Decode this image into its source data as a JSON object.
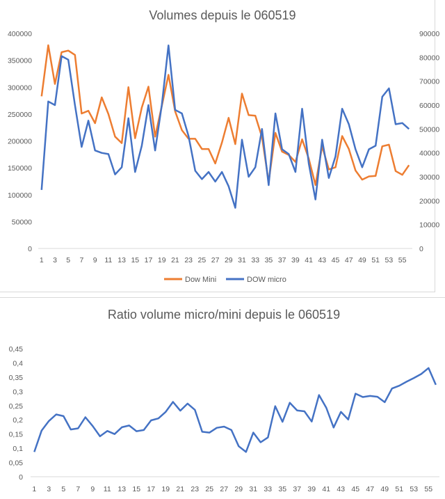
{
  "colors": {
    "dow_mini": "#ED7D31",
    "dow_micro": "#4472C4",
    "axis": "#D9D9D9",
    "text": "#595959"
  },
  "chart_data": [
    {
      "type": "line",
      "title": "Volumes depuis le 060519",
      "categories": [
        1,
        2,
        3,
        4,
        5,
        6,
        7,
        8,
        9,
        10,
        11,
        12,
        13,
        14,
        15,
        16,
        17,
        18,
        19,
        20,
        21,
        22,
        23,
        24,
        25,
        26,
        27,
        28,
        29,
        30,
        31,
        32,
        33,
        34,
        35,
        36,
        37,
        38,
        39,
        40,
        41,
        42,
        43,
        44,
        45,
        46,
        47,
        48,
        49,
        50,
        51,
        52,
        53,
        54,
        55,
        56
      ],
      "x_tick_labels": [
        "1",
        "3",
        "5",
        "7",
        "9",
        "11",
        "13",
        "15",
        "17",
        "19",
        "21",
        "23",
        "25",
        "27",
        "29",
        "31",
        "33",
        "35",
        "37",
        "39",
        "41",
        "43",
        "45",
        "47",
        "49",
        "51",
        "53",
        "55"
      ],
      "y_left": {
        "min": 0,
        "max": 400000,
        "tick_labels": [
          "0",
          "50000",
          "100000",
          "150000",
          "200000",
          "250000",
          "300000",
          "350000",
          "400000"
        ]
      },
      "y_right": {
        "min": 0,
        "max": 90000,
        "tick_labels": [
          "0",
          "10000",
          "20000",
          "30000",
          "40000",
          "50000",
          "60000",
          "70000",
          "80000",
          "90000"
        ]
      },
      "series": [
        {
          "name": "Dow Mini",
          "axis": "left",
          "values": [
            283000,
            378000,
            306000,
            365000,
            368000,
            360000,
            251000,
            256000,
            233000,
            281000,
            250000,
            208000,
            196000,
            300000,
            205000,
            262000,
            301000,
            208000,
            265000,
            323000,
            255000,
            220000,
            204000,
            204000,
            185000,
            185000,
            158000,
            197000,
            243000,
            194000,
            288000,
            248000,
            247000,
            207000,
            124000,
            215000,
            180000,
            174000,
            161000,
            203000,
            167000,
            118000,
            190000,
            147000,
            151000,
            209000,
            185000,
            145000,
            128000,
            134000,
            135000,
            190000,
            193000,
            144000,
            137000,
            155000
          ]
        },
        {
          "name": "DOW micro",
          "axis": "right",
          "values": [
            24500,
            61500,
            60000,
            80500,
            79000,
            60000,
            42500,
            53500,
            41000,
            40000,
            39500,
            31000,
            34000,
            54500,
            32000,
            43000,
            60000,
            41000,
            60000,
            85000,
            58000,
            56500,
            47000,
            32500,
            29000,
            32000,
            28000,
            32000,
            26000,
            17000,
            45500,
            30000,
            34000,
            50000,
            26500,
            56500,
            41500,
            39500,
            32000,
            58500,
            35500,
            20500,
            45500,
            29500,
            38500,
            58500,
            52000,
            41500,
            34000,
            41500,
            43000,
            63500,
            67000,
            52000,
            52500,
            50000
          ]
        }
      ],
      "legend": [
        "Dow Mini",
        "DOW micro"
      ],
      "legend_position": "bottom"
    },
    {
      "type": "line",
      "title": "Ratio volume micro/mini depuis le 060519",
      "categories": [
        1,
        2,
        3,
        4,
        5,
        6,
        7,
        8,
        9,
        10,
        11,
        12,
        13,
        14,
        15,
        16,
        17,
        18,
        19,
        20,
        21,
        22,
        23,
        24,
        25,
        26,
        27,
        28,
        29,
        30,
        31,
        32,
        33,
        34,
        35,
        36,
        37,
        38,
        39,
        40,
        41,
        42,
        43,
        44,
        45,
        46,
        47,
        48,
        49,
        50,
        51,
        52,
        53,
        54,
        55,
        56
      ],
      "x_tick_labels": [
        "1",
        "3",
        "5",
        "7",
        "9",
        "11",
        "13",
        "15",
        "17",
        "19",
        "21",
        "23",
        "25",
        "27",
        "29",
        "31",
        "33",
        "35",
        "37",
        "39",
        "41",
        "43",
        "45",
        "47",
        "49",
        "51",
        "53",
        "55"
      ],
      "y": {
        "min": 0,
        "max": 0.45,
        "tick_labels": [
          "0",
          "0,05",
          "0,1",
          "0,15",
          "0,2",
          "0,25",
          "0,3",
          "0,35",
          "0,4",
          "0,45"
        ]
      },
      "series": [
        {
          "name": "Ratio",
          "values": [
            0.087,
            0.162,
            0.196,
            0.219,
            0.213,
            0.166,
            0.17,
            0.209,
            0.178,
            0.142,
            0.161,
            0.15,
            0.174,
            0.18,
            0.16,
            0.164,
            0.198,
            0.205,
            0.228,
            0.263,
            0.232,
            0.257,
            0.235,
            0.158,
            0.155,
            0.172,
            0.176,
            0.164,
            0.107,
            0.087,
            0.155,
            0.121,
            0.138,
            0.248,
            0.193,
            0.26,
            0.233,
            0.23,
            0.194,
            0.287,
            0.242,
            0.173,
            0.228,
            0.201,
            0.292,
            0.28,
            0.284,
            0.281,
            0.262,
            0.31,
            0.32,
            0.334,
            0.347,
            0.361,
            0.382,
            0.323
          ]
        }
      ]
    }
  ]
}
